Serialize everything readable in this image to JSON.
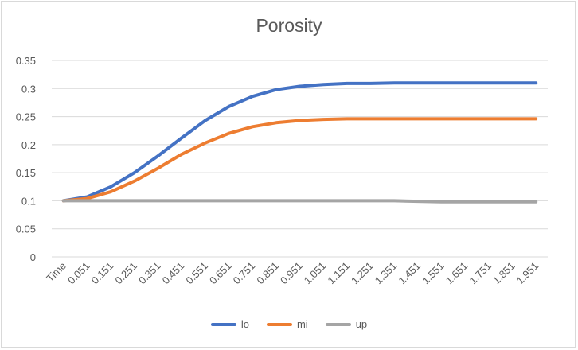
{
  "chart_data": {
    "type": "line",
    "title": "Porosity",
    "xlabel": "",
    "ylabel": "",
    "ylim": [
      0,
      0.35
    ],
    "y_ticks": [
      "0",
      "0.05",
      "0.1",
      "0.15",
      "0.2",
      "0.25",
      "0.3",
      "0.35"
    ],
    "categories": [
      "Time",
      "0.051",
      "0.151",
      "0.251",
      "0.351",
      "0.451",
      "0.551",
      "0.651",
      "0.751",
      "0.851",
      "0.951",
      "1.051",
      "1.151",
      "1.251",
      "1.351",
      "1.451",
      "1.551",
      "1.651",
      "1.751",
      "1.851",
      "1.951"
    ],
    "grid": true,
    "legend_position": "bottom",
    "series": [
      {
        "name": "lo",
        "color": "#4472C4",
        "values": [
          0.1,
          0.107,
          0.125,
          0.15,
          0.18,
          0.212,
          0.243,
          0.268,
          0.286,
          0.298,
          0.304,
          0.307,
          0.309,
          0.309,
          0.31,
          0.31,
          0.31,
          0.31,
          0.31,
          0.31,
          0.31
        ]
      },
      {
        "name": "mi",
        "color": "#ED7D31",
        "values": [
          0.1,
          0.104,
          0.116,
          0.135,
          0.158,
          0.183,
          0.203,
          0.22,
          0.232,
          0.239,
          0.243,
          0.245,
          0.246,
          0.246,
          0.246,
          0.246,
          0.246,
          0.246,
          0.246,
          0.246,
          0.246
        ]
      },
      {
        "name": "up",
        "color": "#A5A5A5",
        "values": [
          0.1,
          0.1,
          0.1,
          0.1,
          0.1,
          0.1,
          0.1,
          0.1,
          0.1,
          0.1,
          0.1,
          0.1,
          0.1,
          0.1,
          0.1,
          0.099,
          0.098,
          0.098,
          0.098,
          0.098,
          0.098
        ]
      }
    ]
  }
}
